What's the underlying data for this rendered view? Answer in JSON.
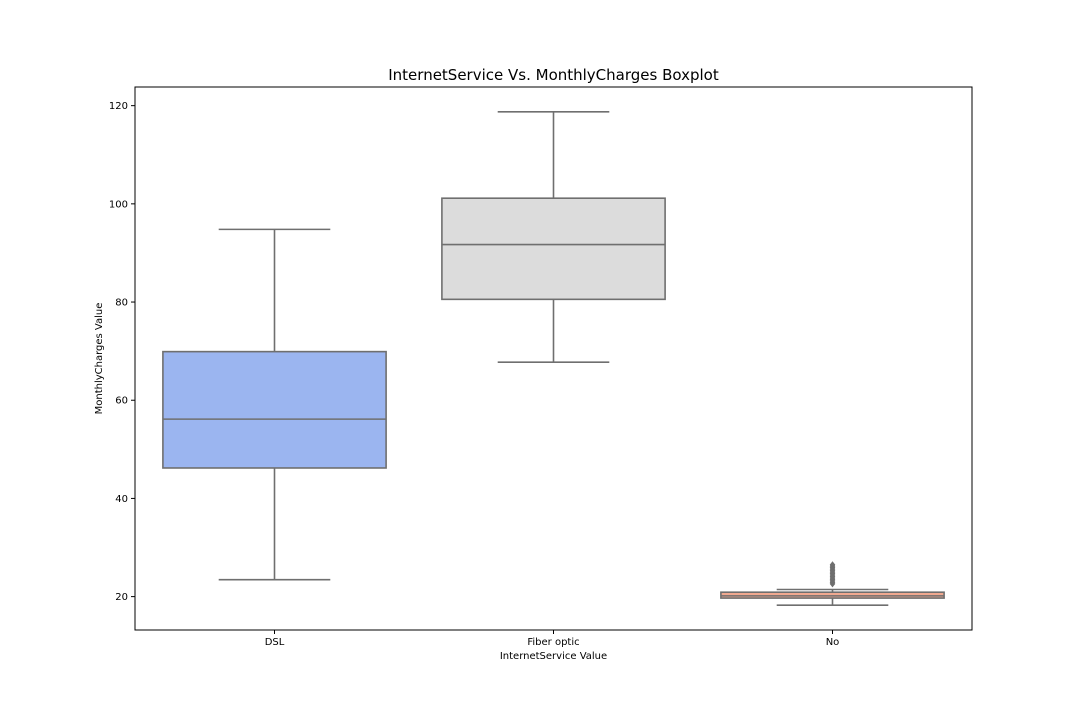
{
  "chart_data": {
    "type": "boxplot",
    "title": "InternetService Vs. MonthlyCharges Boxplot",
    "xlabel": "InternetService Value",
    "ylabel": "MonthlyCharges Value",
    "ylim": [
      13.2,
      123.8
    ],
    "yticks": [
      20,
      40,
      60,
      80,
      100,
      120
    ],
    "grid": false,
    "categories": [
      "DSL",
      "Fiber optic",
      "No"
    ],
    "boxes": [
      {
        "category": "DSL",
        "whisker_low": 23.45,
        "q1": 46.2,
        "median": 56.15,
        "q3": 69.9,
        "whisker_high": 94.8,
        "color": "#9bb5f0",
        "outliers": []
      },
      {
        "category": "Fiber optic",
        "whisker_low": 67.75,
        "q1": 80.55,
        "median": 91.7,
        "q3": 101.15,
        "whisker_high": 118.75,
        "color": "#dcdcdc",
        "outliers": []
      },
      {
        "category": "No",
        "whisker_low": 18.25,
        "q1": 19.7,
        "median": 20.15,
        "q3": 20.9,
        "whisker_high": 21.45,
        "color": "#f1a990",
        "outliers": [
          22.6,
          22.9,
          23.2,
          23.5,
          23.8,
          24.1,
          24.4,
          24.7,
          25.0,
          25.3,
          25.6,
          25.9,
          26.2,
          26.5
        ]
      }
    ]
  }
}
